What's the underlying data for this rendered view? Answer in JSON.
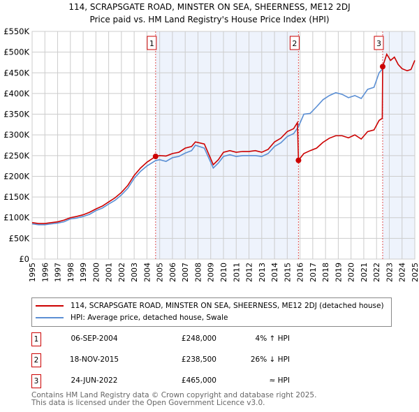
{
  "chart_data": {
    "type": "line",
    "title": "114, SCRAPSGATE ROAD, MINSTER ON SEA, SHEERNESS, ME12 2DJ",
    "subtitle": "Price paid vs. HM Land Registry's House Price Index (HPI)",
    "xlim": [
      1995,
      2025
    ],
    "ylim": [
      0,
      550000
    ],
    "x_ticks": [
      "1995",
      "1996",
      "1997",
      "1998",
      "1999",
      "2000",
      "2001",
      "2002",
      "2003",
      "2004",
      "2005",
      "2006",
      "2007",
      "2008",
      "2009",
      "2010",
      "2011",
      "2012",
      "2013",
      "2014",
      "2015",
      "2016",
      "2017",
      "2018",
      "2019",
      "2020",
      "2021",
      "2022",
      "2023",
      "2024",
      "2025"
    ],
    "y_ticks": [
      {
        "v": 0,
        "label": "£0"
      },
      {
        "v": 50000,
        "label": "£50K"
      },
      {
        "v": 100000,
        "label": "£100K"
      },
      {
        "v": 150000,
        "label": "£150K"
      },
      {
        "v": 200000,
        "label": "£200K"
      },
      {
        "v": 250000,
        "label": "£250K"
      },
      {
        "v": 300000,
        "label": "£300K"
      },
      {
        "v": 350000,
        "label": "£350K"
      },
      {
        "v": 400000,
        "label": "£400K"
      },
      {
        "v": 450000,
        "label": "£450K"
      },
      {
        "v": 500000,
        "label": "£500K"
      },
      {
        "v": 550000,
        "label": "£550K"
      }
    ],
    "grid": true,
    "series": [
      {
        "name": "114, SCRAPSGATE ROAD, MINSTER ON SEA, SHEERNESS, ME12 2DJ (detached house)",
        "color": "#cc0000",
        "x": [
          1995,
          1995.5,
          1996,
          1996.5,
          1997,
          1997.5,
          1998,
          1998.5,
          1999,
          1999.5,
          2000,
          2000.5,
          2001,
          2001.5,
          2002,
          2002.5,
          2003,
          2003.5,
          2004,
          2004.68,
          2005,
          2005.5,
          2006,
          2006.5,
          2007,
          2007.5,
          2007.8,
          2008.5,
          2009.2,
          2009.6,
          2010,
          2010.5,
          2011,
          2011.5,
          2012,
          2012.5,
          2013,
          2013.5,
          2014,
          2014.5,
          2015,
          2015.5,
          2015.8,
          2015.88,
          2016.3,
          2016.8,
          2017.3,
          2017.8,
          2018.3,
          2018.8,
          2019.3,
          2019.8,
          2020.3,
          2020.8,
          2021.3,
          2021.8,
          2022.2,
          2022.45,
          2022.48,
          2022.8,
          2023.1,
          2023.4,
          2023.7,
          2024,
          2024.4,
          2024.7,
          2025
        ],
        "y": [
          88,
          86,
          86,
          88,
          90,
          94,
          100,
          103,
          107,
          113,
          121,
          128,
          138,
          148,
          161,
          178,
          202,
          220,
          234,
          248,
          250,
          249,
          255,
          258,
          268,
          272,
          283,
          278,
          228,
          240,
          258,
          262,
          258,
          260,
          260,
          262,
          258,
          265,
          283,
          292,
          308,
          315,
          330,
          238.5,
          255,
          262,
          268,
          282,
          292,
          298,
          298,
          293,
          300,
          290,
          308,
          312,
          335,
          340,
          465,
          495,
          480,
          488,
          470,
          460,
          455,
          458,
          480
        ]
      },
      {
        "name": "HPI: Average price, detached house, Swale",
        "color": "#5b8fd4",
        "x": [
          1995,
          1995.5,
          1996,
          1996.5,
          1997,
          1997.5,
          1998,
          1998.5,
          1999,
          1999.5,
          2000,
          2000.5,
          2001,
          2001.5,
          2002,
          2002.5,
          2003,
          2003.5,
          2004,
          2004.68,
          2005,
          2005.5,
          2006,
          2006.5,
          2007,
          2007.5,
          2007.8,
          2008.5,
          2009.2,
          2009.6,
          2010,
          2010.5,
          2011,
          2011.5,
          2012,
          2012.5,
          2013,
          2013.5,
          2014,
          2014.5,
          2015,
          2015.5,
          2015.88,
          2016.3,
          2016.8,
          2017.3,
          2017.8,
          2018.3,
          2018.8,
          2019.3,
          2019.8,
          2020.3,
          2020.8,
          2021.3,
          2021.8,
          2022.2,
          2022.48
        ],
        "y": [
          85,
          83,
          83,
          85,
          87,
          90,
          97,
          99,
          103,
          108,
          117,
          123,
          133,
          142,
          155,
          171,
          195,
          212,
          225,
          238,
          240,
          236,
          245,
          248,
          256,
          262,
          275,
          268,
          220,
          232,
          248,
          252,
          248,
          250,
          250,
          250,
          248,
          255,
          272,
          281,
          296,
          303,
          320,
          350,
          352,
          368,
          385,
          395,
          402,
          398,
          390,
          395,
          388,
          410,
          415,
          450,
          460
        ]
      }
    ],
    "sales": [
      {
        "n": "1",
        "x": 2004.68,
        "y": 248,
        "date": "06-SEP-2004",
        "price": "£248,000",
        "rel": "4% ↑ HPI"
      },
      {
        "n": "2",
        "x": 2015.88,
        "y": 238.5,
        "date": "18-NOV-2015",
        "price": "£238,500",
        "rel": "26% ↓ HPI"
      },
      {
        "n": "3",
        "x": 2022.48,
        "y": 465,
        "date": "24-JUN-2022",
        "price": "£465,000",
        "rel": "≈ HPI"
      }
    ],
    "shaded_ranges": [
      [
        2004.68,
        2015.88
      ],
      [
        2022.48,
        2025
      ]
    ],
    "y_units": "thousands of £ in series values"
  },
  "legend": {
    "items": [
      "114, SCRAPSGATE ROAD, MINSTER ON SEA, SHEERNESS, ME12 2DJ (detached house)",
      "HPI: Average price, detached house, Swale"
    ]
  },
  "footer": {
    "line1": "Contains HM Land Registry data © Crown copyright and database right 2025.",
    "line2": "This data is licensed under the Open Government Licence v3.0."
  }
}
